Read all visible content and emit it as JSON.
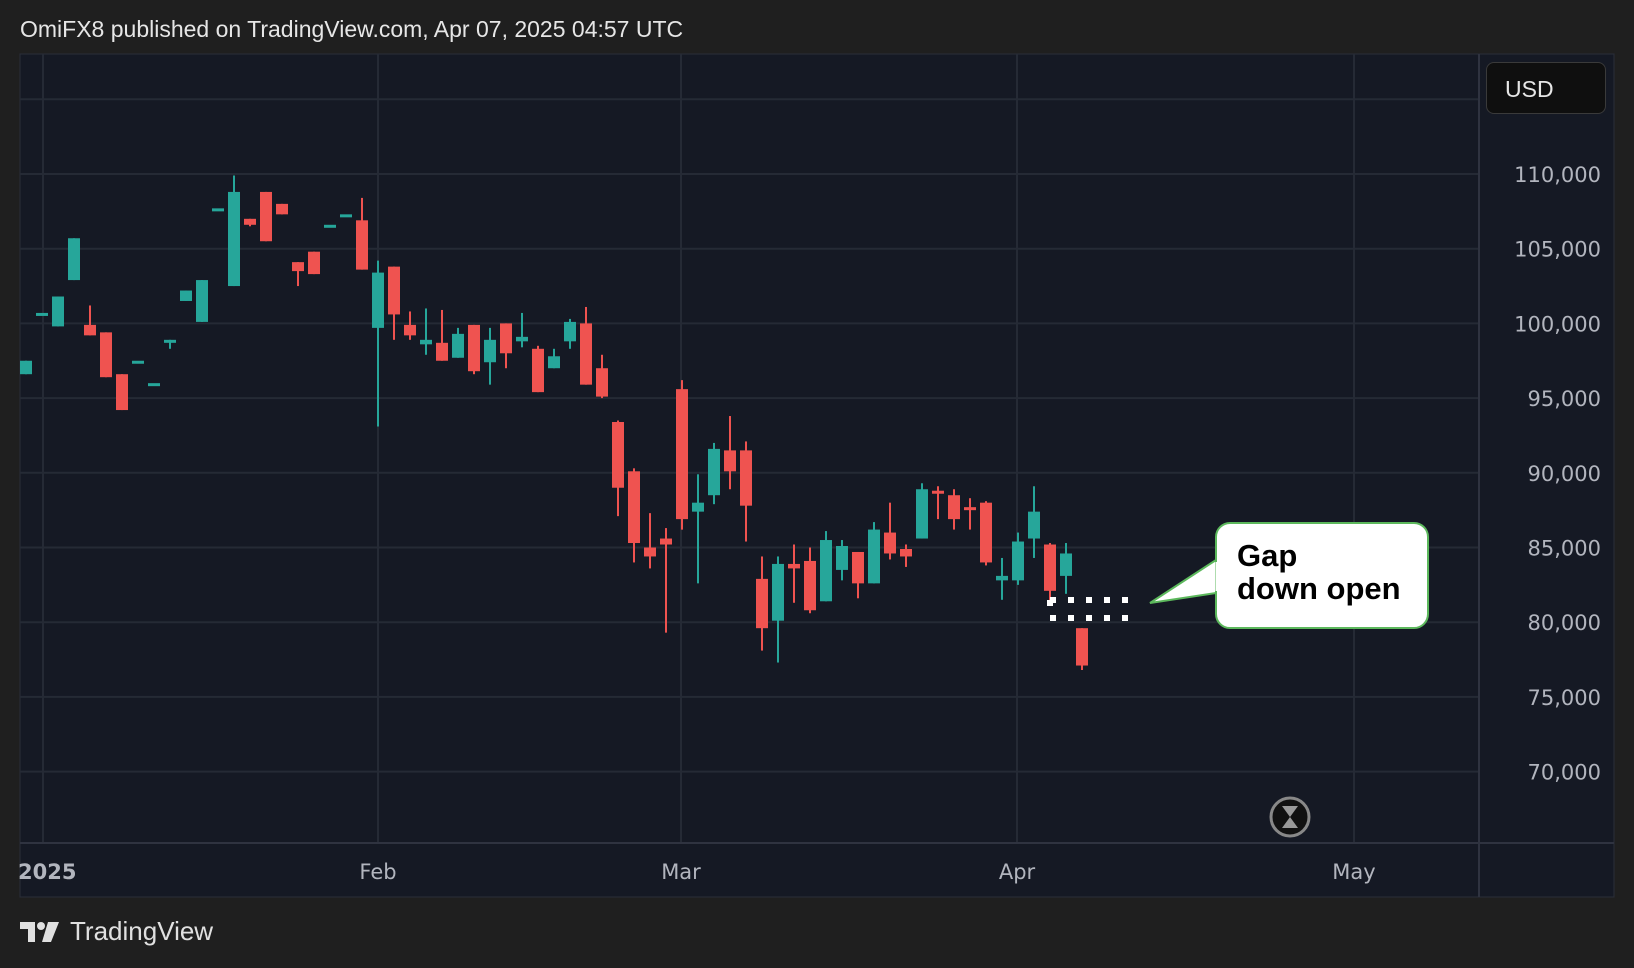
{
  "header": {
    "text": "OmiFX8 published on TradingView.com, Apr 07, 2025 04:57 UTC"
  },
  "currency": "USD",
  "annotation": {
    "text": "Gap\ndown open",
    "border_color": "#5cb85c"
  },
  "footer": {
    "brand": "TradingView"
  },
  "colors": {
    "up": "#26a69a",
    "down": "#ef5350",
    "background": "#151924",
    "grid": "#252a35"
  },
  "icons": {
    "hourglass": "hourglass-icon",
    "logo": "tradingview-logo-icon"
  },
  "chart_data": {
    "type": "candlestick",
    "title": "",
    "ylim": [
      65000,
      117000
    ],
    "grid": true,
    "y_ticks": [
      70000,
      75000,
      80000,
      85000,
      90000,
      95000,
      100000,
      105000,
      110000
    ],
    "y_tick_labels": [
      "70,000",
      "75,000",
      "80,000",
      "85,000",
      "90,000",
      "95,000",
      "100,000",
      "105,000",
      "110,000"
    ],
    "x_tick_labels": [
      "2025",
      "Feb",
      "Mar",
      "Apr",
      "May"
    ],
    "ohlc_columns": [
      "open",
      "high",
      "low",
      "close"
    ],
    "ohlc": [
      [
        96600,
        97500,
        96600,
        97500
      ],
      [
        100700,
        100700,
        100700,
        100700
      ],
      [
        99800,
        101800,
        99800,
        101800
      ],
      [
        102900,
        105700,
        102900,
        105700
      ],
      [
        99900,
        101200,
        99200,
        99200
      ],
      [
        99400,
        99400,
        96400,
        96400
      ],
      [
        96600,
        96600,
        94200,
        94200
      ],
      [
        97500,
        97500,
        97500,
        97500
      ],
      [
        96000,
        96000,
        96000,
        96000
      ],
      [
        98700,
        98900,
        98300,
        98900
      ],
      [
        101500,
        102200,
        101500,
        102200
      ],
      [
        100100,
        102900,
        100100,
        102900
      ],
      [
        107700,
        107700,
        107700,
        107700
      ],
      [
        102500,
        109900,
        102500,
        108800
      ],
      [
        107000,
        107000,
        106500,
        106600
      ],
      [
        108800,
        108800,
        105500,
        105500
      ],
      [
        108000,
        108000,
        107300,
        107300
      ],
      [
        104100,
        104100,
        102500,
        103500
      ],
      [
        104800,
        104800,
        103300,
        103300
      ],
      [
        106600,
        106600,
        106600,
        106600
      ],
      [
        107300,
        107300,
        107300,
        107300
      ],
      [
        106900,
        108400,
        103600,
        103600
      ],
      [
        99700,
        104200,
        93100,
        103400
      ],
      [
        103800,
        103800,
        98900,
        100600
      ],
      [
        99900,
        100800,
        98900,
        99200
      ],
      [
        98600,
        101000,
        97900,
        98900
      ],
      [
        98700,
        100900,
        97500,
        97500
      ],
      [
        97700,
        99700,
        97700,
        99300
      ],
      [
        99900,
        99900,
        96600,
        96800
      ],
      [
        97400,
        99700,
        95900,
        98900
      ],
      [
        100000,
        100000,
        97000,
        98000
      ],
      [
        98800,
        100700,
        98400,
        99100
      ],
      [
        98300,
        98500,
        95400,
        95400
      ],
      [
        97000,
        98300,
        97000,
        97800
      ],
      [
        98800,
        100300,
        98300,
        100100
      ],
      [
        100000,
        101100,
        95900,
        95900
      ],
      [
        97000,
        97900,
        95000,
        95100
      ],
      [
        93400,
        93500,
        87100,
        89000
      ],
      [
        90100,
        90300,
        84000,
        85300
      ],
      [
        85000,
        87300,
        83600,
        84400
      ],
      [
        85600,
        86300,
        79300,
        85200
      ],
      [
        95600,
        96200,
        86200,
        86900
      ],
      [
        87400,
        89900,
        82600,
        88000
      ],
      [
        88500,
        92000,
        87900,
        91600
      ],
      [
        91500,
        93800,
        88900,
        90100
      ],
      [
        91500,
        92100,
        85400,
        87800
      ],
      [
        82900,
        84400,
        78100,
        79600
      ],
      [
        80100,
        84400,
        77300,
        83900
      ],
      [
        83900,
        85200,
        81300,
        83600
      ],
      [
        84100,
        85000,
        80600,
        80800
      ],
      [
        81400,
        86100,
        81400,
        85500
      ],
      [
        83500,
        85500,
        82800,
        85100
      ],
      [
        84700,
        84700,
        81600,
        82600
      ],
      [
        82600,
        86700,
        82600,
        86200
      ],
      [
        86000,
        88000,
        84200,
        84600
      ],
      [
        84900,
        85200,
        83700,
        84400
      ],
      [
        85600,
        89300,
        85600,
        88900
      ],
      [
        88800,
        89100,
        86900,
        88700
      ],
      [
        88500,
        88900,
        86200,
        86900
      ],
      [
        87700,
        88300,
        86200,
        87600
      ],
      [
        88000,
        88100,
        83800,
        84000
      ],
      [
        82800,
        84300,
        81500,
        83100
      ],
      [
        82800,
        86000,
        82500,
        85400
      ],
      [
        85600,
        89100,
        84300,
        87400
      ],
      [
        85200,
        85300,
        81400,
        82100
      ],
      [
        83100,
        85300,
        81900,
        84600
      ],
      [
        79600,
        79600,
        76800,
        77100
      ]
    ]
  }
}
